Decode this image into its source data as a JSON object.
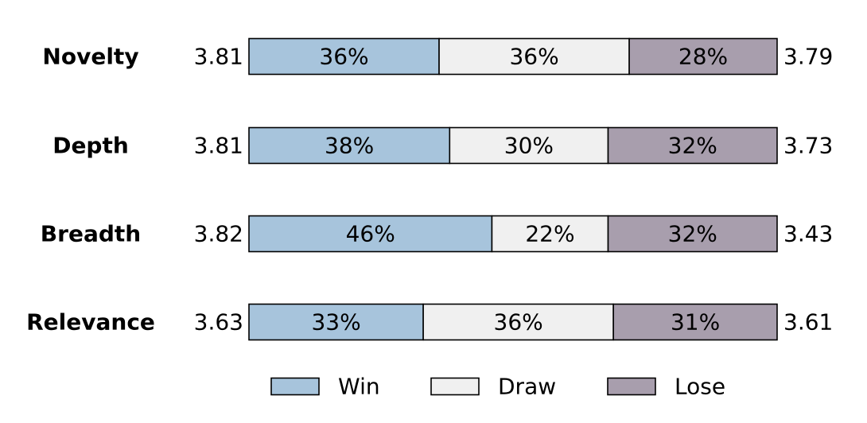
{
  "chart_data": {
    "type": "bar",
    "orientation": "horizontal",
    "stacked": true,
    "normalized_percent": true,
    "categories": [
      "Novelty",
      "Depth",
      "Breadth",
      "Relevance"
    ],
    "series": [
      {
        "name": "Win",
        "values": [
          36,
          38,
          46,
          33
        ],
        "labels": [
          "36%",
          "38%",
          "46%",
          "33%"
        ],
        "color": "#a7c4dc"
      },
      {
        "name": "Draw",
        "values": [
          36,
          30,
          22,
          36
        ],
        "labels": [
          "36%",
          "30%",
          "22%",
          "36%"
        ],
        "color": "#f0f0f0"
      },
      {
        "name": "Lose",
        "values": [
          28,
          32,
          32,
          31
        ],
        "labels": [
          "28%",
          "32%",
          "32%",
          "31%"
        ],
        "color": "#a89ead"
      }
    ],
    "left_scores": [
      "3.81",
      "3.81",
      "3.82",
      "3.63"
    ],
    "right_scores": [
      "3.79",
      "3.73",
      "3.43",
      "3.61"
    ],
    "legend": [
      "Win",
      "Draw",
      "Lose"
    ],
    "legend_position": "bottom",
    "grid": false,
    "title": "",
    "xlabel": "",
    "ylabel": ""
  }
}
